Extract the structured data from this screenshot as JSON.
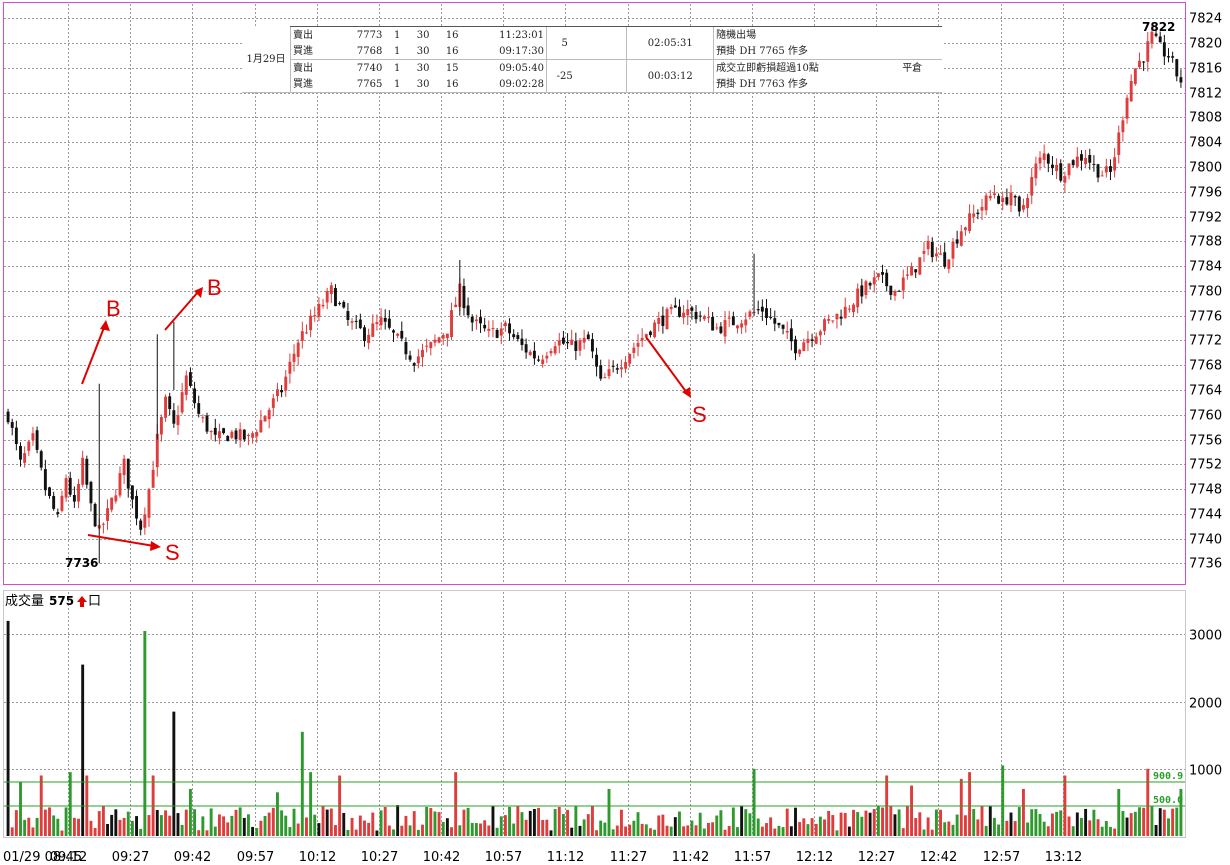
{
  "colors": {
    "up": "#e03c3c",
    "down": "#111111",
    "vol_up": "#e03c3c",
    "vol_down": "#2e9a2e",
    "vol_flat": "#111111",
    "grid": "#9a9a9a",
    "frame": "#d24bd2",
    "annotation": "#e00000",
    "threshold": "#2aa02a"
  },
  "trade_table": {
    "date": "1月29日",
    "rows": [
      {
        "action": "賣出",
        "price": "7773",
        "qty": "1",
        "col3": "30",
        "col4": "16",
        "time": "11:23:01"
      },
      {
        "action": "買進",
        "price": "7768",
        "qty": "1",
        "col3": "30",
        "col4": "16",
        "time": "09:17:30"
      },
      {
        "action": "賣出",
        "price": "7740",
        "qty": "1",
        "col3": "30",
        "col4": "15",
        "time": "09:05:40"
      },
      {
        "action": "買進",
        "price": "7765",
        "qty": "1",
        "col3": "30",
        "col4": "16",
        "time": "09:02:28"
      }
    ],
    "pnl": [
      "5",
      "-25"
    ],
    "durations": [
      "02:05:31",
      "00:03:12"
    ],
    "notes": [
      {
        "reason": "隨機出場",
        "extra": ""
      },
      {
        "reason": "預掛 DH 7765 作多",
        "extra": ""
      },
      {
        "reason": "成交立即虧損超過10點",
        "extra": "平倉"
      },
      {
        "reason": "預掛 DH 7763 作多",
        "extra": ""
      }
    ]
  },
  "annotations": {
    "low_label": "7736",
    "high_label": "7822",
    "b1": "B",
    "b2": "B",
    "s1": "S",
    "s2": "S"
  },
  "volume_panel": {
    "title": "成交量",
    "value": "575",
    "unit": "口",
    "line_high": "900.9",
    "line_low": "500.0"
  },
  "chart_data": [
    {
      "type": "candlestick",
      "title": "",
      "xlabel": "",
      "ylabel": "",
      "x_ticks": [
        "01/29 08:45",
        "09:12",
        "09:27",
        "09:42",
        "09:57",
        "10:12",
        "10:27",
        "10:42",
        "10:57",
        "11:12",
        "11:27",
        "11:42",
        "11:57",
        "12:12",
        "12:27",
        "12:42",
        "12:57",
        "13:12"
      ],
      "y_ticks": [
        7736,
        7740,
        7744,
        7748,
        7752,
        7756,
        7760,
        7764,
        7768,
        7772,
        7776,
        7780,
        7784,
        7788,
        7792,
        7796,
        7800,
        7804,
        7808,
        7812,
        7816,
        7820,
        7824
      ],
      "ylim": [
        7733,
        7826
      ],
      "grid": true,
      "close_path": [
        [
          0,
          7760
        ],
        [
          3,
          7752
        ],
        [
          6,
          7756
        ],
        [
          9,
          7748
        ],
        [
          12,
          7743
        ],
        [
          14,
          7750
        ],
        [
          16,
          7745
        ],
        [
          18,
          7752
        ],
        [
          20,
          7745
        ],
        [
          22,
          7741
        ],
        [
          24,
          7744
        ],
        [
          26,
          7748
        ],
        [
          28,
          7752
        ],
        [
          30,
          7746
        ],
        [
          32,
          7742
        ],
        [
          34,
          7748
        ],
        [
          36,
          7756
        ],
        [
          38,
          7762
        ],
        [
          40,
          7758
        ],
        [
          43,
          7766
        ],
        [
          46,
          7760
        ],
        [
          50,
          7756
        ],
        [
          54,
          7757
        ],
        [
          58,
          7756
        ],
        [
          62,
          7760
        ],
        [
          66,
          7764
        ],
        [
          70,
          7772
        ],
        [
          74,
          7776
        ],
        [
          78,
          7780
        ],
        [
          82,
          7775
        ],
        [
          86,
          7773
        ],
        [
          90,
          7775
        ],
        [
          94,
          7772
        ],
        [
          98,
          7769
        ],
        [
          102,
          7771
        ],
        [
          106,
          7774
        ],
        [
          109,
          7780
        ],
        [
          112,
          7775
        ],
        [
          116,
          7773
        ],
        [
          120,
          7774
        ],
        [
          124,
          7771
        ],
        [
          128,
          7769
        ],
        [
          132,
          7772
        ],
        [
          136,
          7771
        ],
        [
          140,
          7772
        ],
        [
          143,
          7765
        ],
        [
          147,
          7768
        ],
        [
          151,
          7771
        ],
        [
          155,
          7774
        ],
        [
          159,
          7776
        ],
        [
          163,
          7777
        ],
        [
          167,
          7776
        ],
        [
          171,
          7774
        ],
        [
          175,
          7775
        ],
        [
          178,
          7776
        ],
        [
          182,
          7777
        ],
        [
          186,
          7774
        ],
        [
          190,
          7771
        ],
        [
          194,
          7773
        ],
        [
          198,
          7775
        ],
        [
          202,
          7777
        ],
        [
          206,
          7780
        ],
        [
          210,
          7782
        ],
        [
          214,
          7780
        ],
        [
          218,
          7783
        ],
        [
          222,
          7787
        ],
        [
          226,
          7785
        ],
        [
          230,
          7790
        ],
        [
          234,
          7793
        ],
        [
          238,
          7796
        ],
        [
          240,
          7794
        ],
        [
          242,
          7796
        ],
        [
          244,
          7792
        ],
        [
          246,
          7796
        ],
        [
          248,
          7800
        ],
        [
          250,
          7802
        ],
        [
          254,
          7799
        ],
        [
          257,
          7801
        ],
        [
          260,
          7802
        ],
        [
          262,
          7800
        ],
        [
          264,
          7799
        ],
        [
          266,
          7799
        ],
        [
          268,
          7805
        ],
        [
          270,
          7812
        ],
        [
          272,
          7816
        ],
        [
          274,
          7818
        ],
        [
          276,
          7821
        ],
        [
          278,
          7819
        ],
        [
          280,
          7818
        ],
        [
          282,
          7815
        ],
        [
          283,
          7814
        ]
      ],
      "n_bars": 284
    },
    {
      "type": "bar",
      "title": "成交量",
      "y_ticks": [
        1000,
        2000,
        3000
      ],
      "ylim": [
        0,
        3600
      ],
      "reference_lines": [
        900.9,
        500.0
      ],
      "spikes": [
        [
          0,
          3200
        ],
        [
          3,
          800
        ],
        [
          8,
          900
        ],
        [
          15,
          950
        ],
        [
          18,
          2550
        ],
        [
          19,
          900
        ],
        [
          33,
          3050
        ],
        [
          35,
          900
        ],
        [
          40,
          1850
        ],
        [
          44,
          700
        ],
        [
          65,
          650
        ],
        [
          71,
          1550
        ],
        [
          73,
          950
        ],
        [
          80,
          900
        ],
        [
          108,
          950
        ],
        [
          145,
          700
        ],
        [
          180,
          1000
        ],
        [
          212,
          900
        ],
        [
          218,
          750
        ],
        [
          230,
          850
        ],
        [
          232,
          950
        ],
        [
          240,
          1050
        ],
        [
          245,
          700
        ],
        [
          255,
          900
        ],
        [
          268,
          700
        ],
        [
          275,
          1000
        ],
        [
          283,
          700
        ]
      ]
    }
  ]
}
